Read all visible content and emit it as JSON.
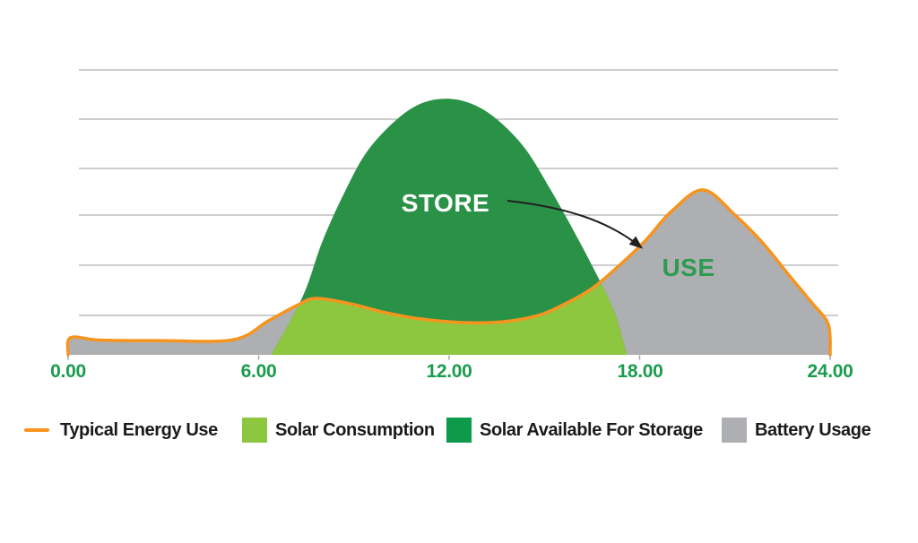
{
  "page": {
    "background": "#FFFFFF"
  },
  "chart_data": {
    "type": "area",
    "title": "",
    "x_axis": {
      "tick_labels": [
        "0.00",
        "6.00",
        "12.00",
        "18.00",
        "24.00"
      ],
      "range_hours": [
        0,
        24
      ],
      "label_color": "#1B9C4D",
      "tick_color": "#A6A6A6"
    },
    "y_axis": {
      "visible": false,
      "range_relative": [
        0,
        1
      ],
      "gridline_count": 6
    },
    "grid": {
      "on": true,
      "color": "#9B9B9B"
    },
    "annotations": {
      "store_label": "STORE",
      "store_color": "#FFFFFF",
      "use_label": "USE",
      "use_color": "#2E9C4F",
      "arrow_color": "#231F20"
    },
    "series": [
      {
        "name": "Typical Energy Use",
        "type": "line",
        "color": "#F7941E",
        "points": [
          [
            0,
            0
          ],
          [
            0.08,
            0.06
          ],
          [
            1,
            0.052
          ],
          [
            2.9,
            0.05
          ],
          [
            5.2,
            0.053
          ],
          [
            6.3,
            0.119
          ],
          [
            7.2,
            0.173
          ],
          [
            7.8,
            0.198
          ],
          [
            8.9,
            0.179
          ],
          [
            10,
            0.148
          ],
          [
            11.1,
            0.126
          ],
          [
            12.5,
            0.113
          ],
          [
            13.7,
            0.116
          ],
          [
            14.8,
            0.138
          ],
          [
            15.6,
            0.176
          ],
          [
            16.5,
            0.233
          ],
          [
            17.3,
            0.308
          ],
          [
            18.2,
            0.403
          ],
          [
            19,
            0.503
          ],
          [
            20,
            0.579
          ],
          [
            21,
            0.491
          ],
          [
            21.9,
            0.39
          ],
          [
            22.7,
            0.28
          ],
          [
            23.4,
            0.186
          ],
          [
            23.94,
            0.107
          ],
          [
            24,
            0
          ]
        ]
      },
      {
        "name": "Solar Consumption",
        "type": "area",
        "color": "#8DC63F",
        "derived": "area under min(Typical Energy Use, Solar Available For Storage)"
      },
      {
        "name": "Solar Available For Storage",
        "type": "area",
        "color": "#2A9247",
        "points": [
          [
            6.4,
            0
          ],
          [
            7.4,
            0.208
          ],
          [
            8,
            0.396
          ],
          [
            8.7,
            0.569
          ],
          [
            9.4,
            0.711
          ],
          [
            10.3,
            0.821
          ],
          [
            11.1,
            0.881
          ],
          [
            11.9,
            0.899
          ],
          [
            12.7,
            0.881
          ],
          [
            13.5,
            0.827
          ],
          [
            14.4,
            0.723
          ],
          [
            15.2,
            0.579
          ],
          [
            15.9,
            0.44
          ],
          [
            16.6,
            0.292
          ],
          [
            17.2,
            0.151
          ],
          [
            17.6,
            0
          ]
        ]
      },
      {
        "name": "Battery Usage",
        "type": "area",
        "color": "#AEAFB2",
        "derived": "area under Typical Energy Use line outside solar window"
      }
    ]
  },
  "legend": {
    "text_color": "#1A1A1A",
    "items": [
      {
        "label": "Typical Energy Use",
        "swatch": "line",
        "color": "#F7941E"
      },
      {
        "label": "Solar Consumption",
        "swatch": "square",
        "color": "#8DC63F"
      },
      {
        "label": "Solar Available For Storage",
        "swatch": "square",
        "color": "#0E9A4B"
      },
      {
        "label": "Battery Usage",
        "swatch": "square",
        "color": "#AEAFB2"
      }
    ]
  }
}
